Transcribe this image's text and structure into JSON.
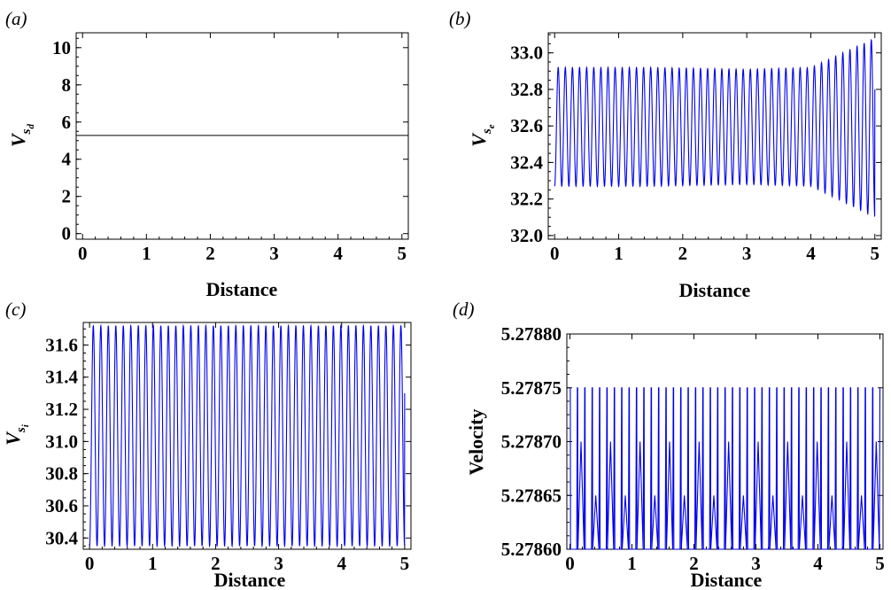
{
  "chart_data": [
    {
      "panel": "(a)",
      "type": "line",
      "xlabel": "Distance",
      "ylabel_base": "V",
      "ylabel_sub": "s",
      "ylabel_subsub": "d",
      "xlim": [
        -0.1,
        5.1
      ],
      "ylim": [
        -0.3,
        10.8
      ],
      "xticks": [
        0,
        1,
        2,
        3,
        4,
        5
      ],
      "xtick_labels": [
        "0",
        "1",
        "2",
        "3",
        "4",
        "5"
      ],
      "yticks": [
        0,
        2,
        4,
        6,
        8,
        10
      ],
      "ytick_labels": [
        "0",
        "2",
        "4",
        "6",
        "8",
        "10"
      ],
      "grid": false,
      "series": [
        {
          "color": "#000000",
          "kind": "constant",
          "value": 5.28
        }
      ]
    },
    {
      "panel": "(b)",
      "type": "line",
      "xlabel": "Distance",
      "ylabel_base": "V",
      "ylabel_sub": "s",
      "ylabel_subsub": "e",
      "xlim": [
        -0.1,
        5.1
      ],
      "ylim": [
        31.98,
        33.11
      ],
      "xticks": [
        0,
        1,
        2,
        3,
        4,
        5
      ],
      "xtick_labels": [
        "0",
        "1",
        "2",
        "3",
        "4",
        "5"
      ],
      "yticks": [
        32.0,
        32.2,
        32.4,
        32.6,
        32.8,
        33.0
      ],
      "ytick_labels": [
        "32.0",
        "32.2",
        "32.4",
        "32.6",
        "32.8",
        "33.0"
      ],
      "grid": false,
      "series": [
        {
          "color": "#0000ee",
          "kind": "oscillation",
          "x_range": [
            0,
            5
          ],
          "cycles": 45,
          "center": 32.595,
          "upper": [
            32.92,
            32.92,
            32.91,
            32.92,
            33.08
          ],
          "lower": [
            32.27,
            32.27,
            32.28,
            32.27,
            32.1
          ],
          "envelope_x": [
            0,
            1.5,
            3.0,
            4.0,
            5.0
          ],
          "end_value": 32.8
        }
      ]
    },
    {
      "panel": "(c)",
      "type": "line",
      "xlabel": "Distance",
      "ylabel_base": "V",
      "ylabel_sub": "s",
      "ylabel_subsub": "i",
      "xlim": [
        -0.1,
        5.1
      ],
      "ylim": [
        30.33,
        31.74
      ],
      "xticks": [
        0,
        1,
        2,
        3,
        4,
        5
      ],
      "xtick_labels": [
        "0",
        "1",
        "2",
        "3",
        "4",
        "5"
      ],
      "yticks": [
        30.4,
        30.6,
        30.8,
        31.0,
        31.2,
        31.4,
        31.6
      ],
      "ytick_labels": [
        "30.4",
        "30.6",
        "30.8",
        "31.0",
        "31.2",
        "31.4",
        "31.6"
      ],
      "grid": false,
      "series": [
        {
          "color": "#0000ee",
          "kind": "oscillation",
          "x_range": [
            0,
            5
          ],
          "cycles": 42,
          "center": 31.035,
          "upper": [
            31.72,
            31.72
          ],
          "lower": [
            30.35,
            30.35
          ],
          "envelope_x": [
            0,
            5
          ],
          "end_value": 31.3
        }
      ]
    },
    {
      "panel": "(d)",
      "type": "line",
      "xlabel": "Distance",
      "ylabel": "Velocity",
      "xlim": [
        -0.05,
        5.05
      ],
      "ylim": [
        5.2786,
        5.2788
      ],
      "xticks": [
        0,
        1,
        2,
        3,
        4,
        5
      ],
      "xtick_labels": [
        "0",
        "1",
        "2",
        "3",
        "4",
        "5"
      ],
      "yticks": [
        5.2786,
        5.27865,
        5.2787,
        5.27875,
        5.2788
      ],
      "ytick_labels": [
        "5.27860",
        "5.27865",
        "5.27870",
        "5.27875",
        "5.27880"
      ],
      "grid": false,
      "series": [
        {
          "color": "#0000ee",
          "kind": "spikes",
          "x_range": [
            0,
            5
          ],
          "cycles": 42,
          "base": 5.2786,
          "peak": 5.27875,
          "mid_levels": [
            5.2787,
            5.27865
          ]
        }
      ]
    }
  ]
}
